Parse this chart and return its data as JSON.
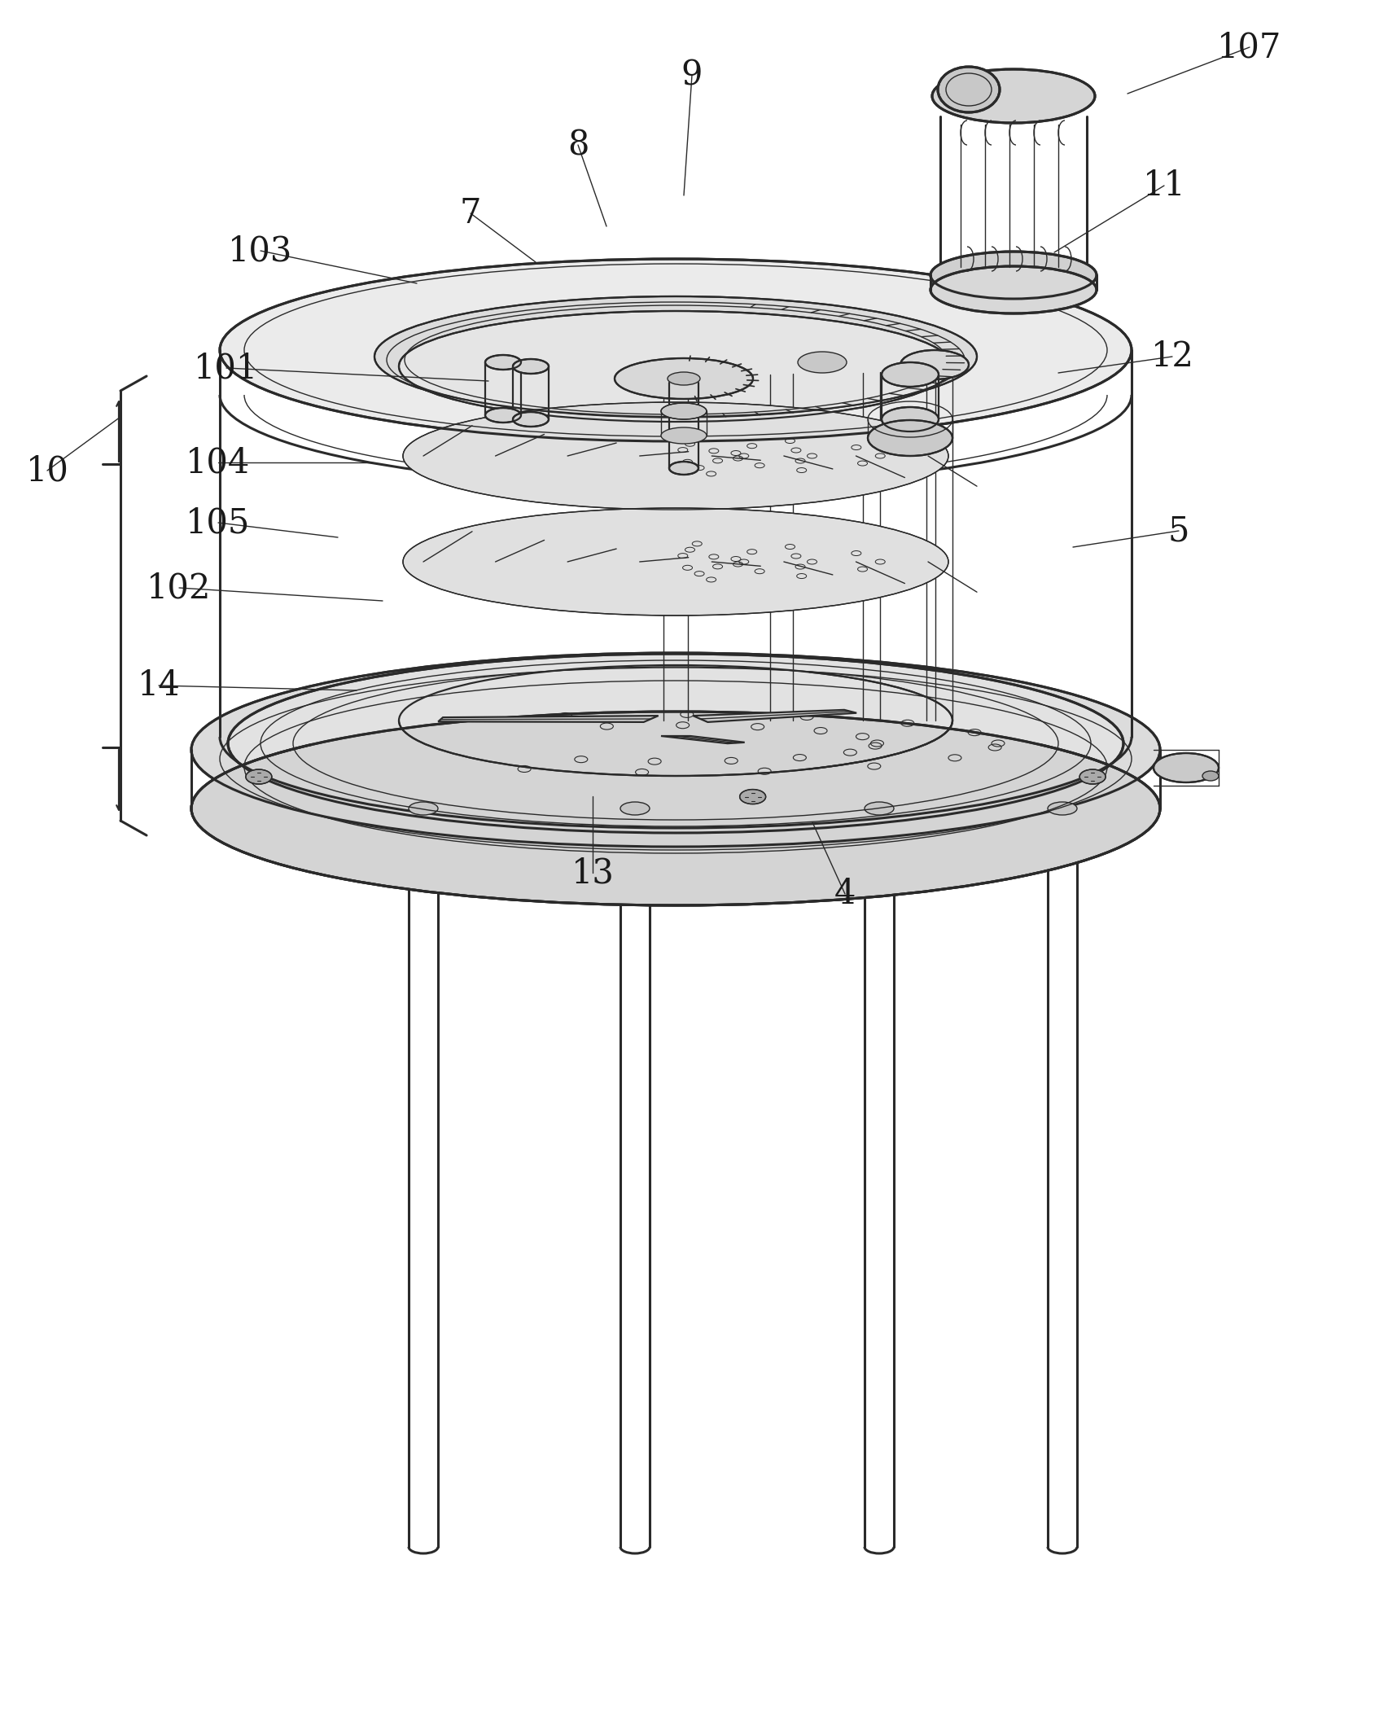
{
  "bg_color": "#ffffff",
  "line_color": "#2a2a2a",
  "fig_width": 17.06,
  "fig_height": 21.04,
  "dpi": 100,
  "font_size": 30,
  "labels_info": [
    [
      "107",
      1535,
      58,
      1385,
      115,
      "serif"
    ],
    [
      "9",
      850,
      92,
      840,
      240,
      "serif"
    ],
    [
      "8",
      710,
      178,
      745,
      278,
      "serif"
    ],
    [
      "11",
      1430,
      228,
      1295,
      310,
      "serif"
    ],
    [
      "7",
      578,
      262,
      658,
      322,
      "serif"
    ],
    [
      "103",
      320,
      308,
      512,
      348,
      "serif"
    ],
    [
      "12",
      1440,
      438,
      1300,
      458,
      "serif"
    ],
    [
      "101",
      278,
      452,
      600,
      468,
      "serif"
    ],
    [
      "10",
      58,
      578,
      148,
      512,
      "serif"
    ],
    [
      "104",
      268,
      568,
      458,
      568,
      "serif"
    ],
    [
      "105",
      268,
      642,
      415,
      660,
      "serif"
    ],
    [
      "5",
      1448,
      652,
      1318,
      672,
      "serif"
    ],
    [
      "102",
      220,
      722,
      470,
      738,
      "serif"
    ],
    [
      "14",
      195,
      842,
      438,
      848,
      "serif"
    ],
    [
      "13",
      728,
      1072,
      728,
      978,
      "serif"
    ],
    [
      "4",
      1038,
      1098,
      998,
      1010,
      "serif"
    ]
  ]
}
